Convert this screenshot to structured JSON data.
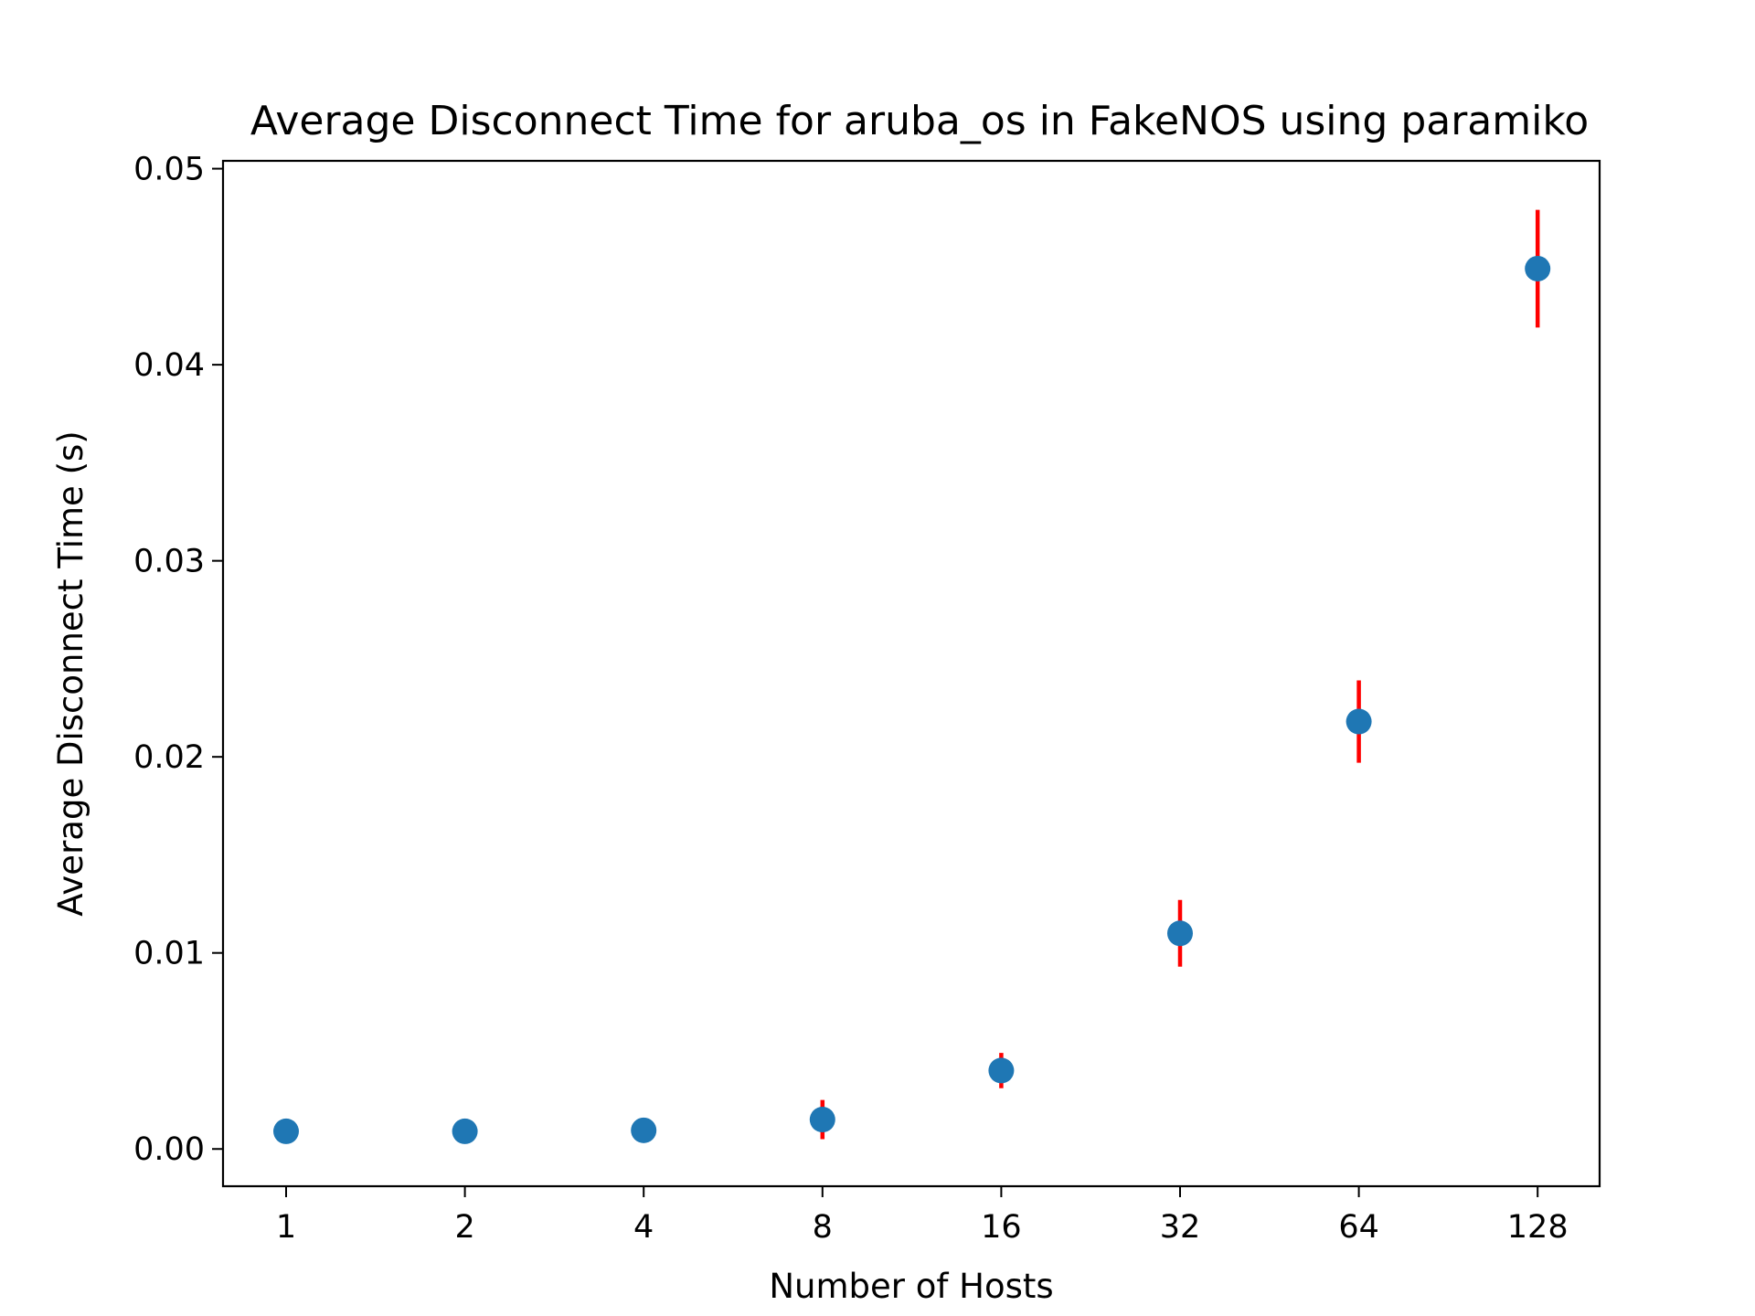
{
  "chart_data": {
    "type": "scatter",
    "title": "Average Disconnect Time for aruba_os in FakeNOS using paramiko",
    "xlabel": "Number of Hosts",
    "ylabel": "Average Disconnect Time (s)",
    "categories": [
      "1",
      "2",
      "4",
      "8",
      "16",
      "32",
      "64",
      "128"
    ],
    "ylim": [
      -0.0019,
      0.0504
    ],
    "yticks": [
      "0.00",
      "0.01",
      "0.02",
      "0.03",
      "0.04",
      "0.05"
    ],
    "ytick_values": [
      0,
      0.01,
      0.02,
      0.03,
      0.04,
      0.05
    ],
    "grid": false,
    "legend": "none",
    "series": [
      {
        "values": [
          0.0009,
          0.0009,
          0.00095,
          0.0015,
          0.004,
          0.011,
          0.0218,
          0.0449
        ],
        "error": [
          0.0001,
          0.0001,
          0.0001,
          0.001,
          0.0009,
          0.0017,
          0.0021,
          0.003
        ]
      }
    ],
    "colors": {
      "marker": "#1f77b4",
      "errorbar": "#ff0000",
      "axes": "#000000"
    }
  }
}
